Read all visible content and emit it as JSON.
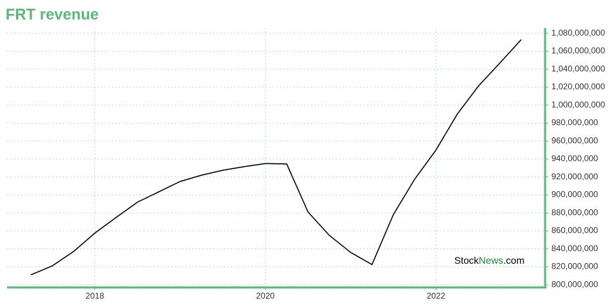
{
  "chart_data": {
    "type": "line",
    "title": "FRT revenue",
    "x": [
      2017.25,
      2017.5,
      2017.75,
      2018,
      2018.25,
      2018.5,
      2018.75,
      2019,
      2019.25,
      2019.5,
      2019.75,
      2020,
      2020.25,
      2020.5,
      2020.75,
      2021,
      2021.25,
      2021.5,
      2021.75,
      2022,
      2022.25,
      2022.5,
      2022.75,
      2023
    ],
    "series": [
      {
        "name": "FRT revenue",
        "color": "#000000",
        "values": [
          811000000,
          821000000,
          837000000,
          857500000,
          875000000,
          892000000,
          903500000,
          915000000,
          922000000,
          927500000,
          931500000,
          935000000,
          934500000,
          881000000,
          855000000,
          836000000,
          822500000,
          878000000,
          917500000,
          950000000,
          990000000,
          1021500000,
          1047000000,
          1073000000
        ]
      }
    ],
    "xlim": [
      2016.97,
      2023.28
    ],
    "xticks": [
      2018,
      2020,
      2022
    ],
    "ylim": [
      797000000,
      1086000000
    ],
    "yticks": [
      {
        "value": 800000000,
        "label": "800,000,000"
      },
      {
        "value": 820000000,
        "label": "820,000,000"
      },
      {
        "value": 840000000,
        "label": "840,000,000"
      },
      {
        "value": 860000000,
        "label": "860,000,000"
      },
      {
        "value": 880000000,
        "label": "880,000,000"
      },
      {
        "value": 900000000,
        "label": "900,000,000"
      },
      {
        "value": 920000000,
        "label": "920,000,000"
      },
      {
        "value": 940000000,
        "label": "940,000,000"
      },
      {
        "value": 960000000,
        "label": "960,000,000"
      },
      {
        "value": 980000000,
        "label": "980,000,000"
      },
      {
        "value": 1000000000,
        "label": "1,000,000,000"
      },
      {
        "value": 1020000000,
        "label": "1,020,000,000"
      },
      {
        "value": 1040000000,
        "label": "1,040,000,000"
      },
      {
        "value": 1060000000,
        "label": "1,060,000,000"
      },
      {
        "value": 1080000000,
        "label": "1,080,000,000"
      }
    ],
    "grid": true,
    "axis_color": "#5cb87a",
    "grid_color": "#b5ddc6",
    "watermark": {
      "parts": [
        "Stock",
        "News",
        ".com"
      ],
      "colors": [
        "#000000",
        "#1a8a3a",
        "#000000"
      ]
    }
  }
}
